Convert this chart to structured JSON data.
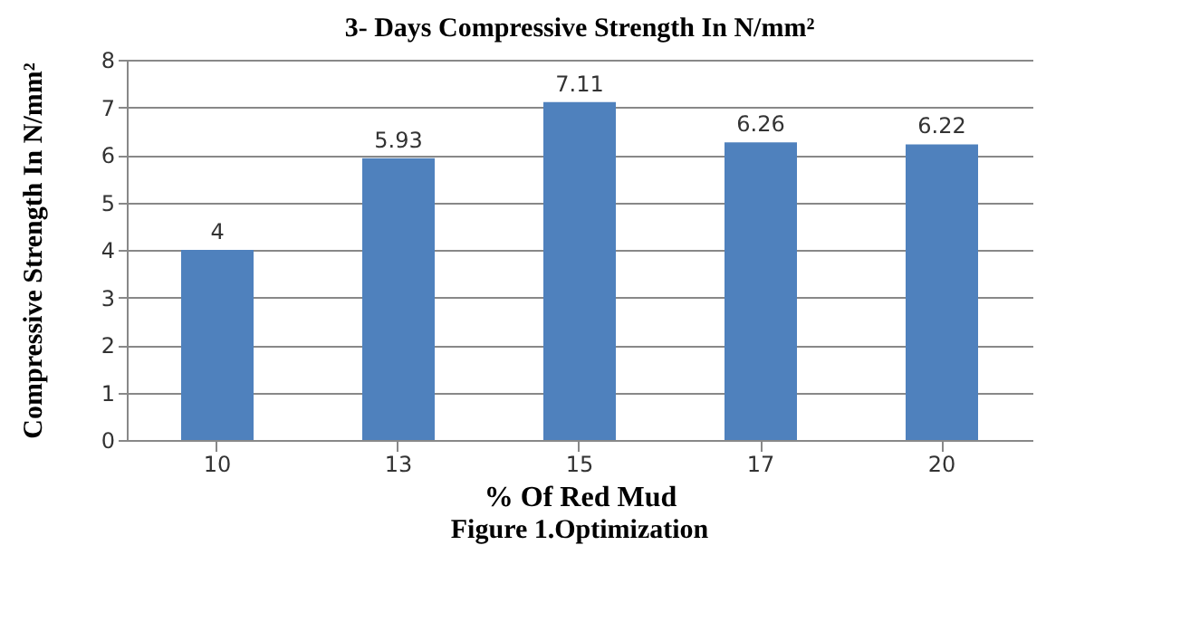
{
  "chart_data": {
    "type": "bar",
    "title": "3- Days Compressive Strength In N/mm²",
    "xlabel": "% Of Red Mud",
    "ylabel": "Compressive Strength In N/mm²",
    "categories": [
      "10",
      "13",
      "15",
      "17",
      "20"
    ],
    "values": [
      4,
      5.93,
      7.11,
      6.26,
      6.22
    ],
    "color": "#4f81bd",
    "ylim": [
      0,
      8
    ],
    "yticks": [
      0,
      1,
      2,
      3,
      4,
      5,
      6,
      7,
      8
    ],
    "grid": "y",
    "data_labels": true,
    "annotations": [
      "Figure 1.Optimization"
    ]
  }
}
